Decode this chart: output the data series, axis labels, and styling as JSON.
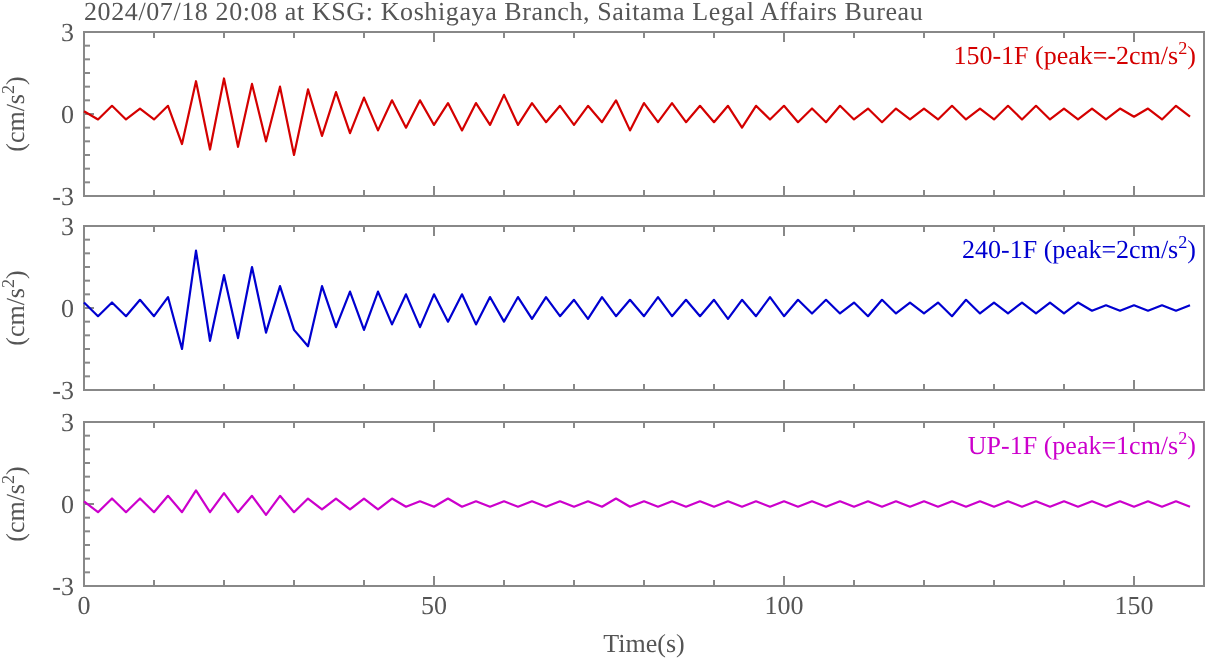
{
  "chart_data": [
    {
      "type": "line",
      "title": "2024/07/18 20:08 at KSG: Koshigaya Branch, Saitama Legal Affairs Bureau",
      "ylabel": "(cm/s$^{2}$)",
      "tick_labels": "y",
      "legend": "top right",
      "xlim": [
        0,
        160
      ],
      "ylim": [
        -3,
        3
      ],
      "xticks": [
        0,
        {
          "value": 10,
          "label": null
        },
        {
          "value": 20,
          "label": null
        },
        {
          "value": 30,
          "label": null
        },
        {
          "value": 40,
          "label": null
        },
        50,
        {
          "value": 60,
          "label": null
        },
        {
          "value": 70,
          "label": null
        },
        {
          "value": 80,
          "label": null
        },
        {
          "value": 90,
          "label": null
        },
        100,
        {
          "value": 110,
          "label": null
        },
        {
          "value": 120,
          "label": null
        },
        {
          "value": 130,
          "label": null
        },
        {
          "value": 140,
          "label": null
        },
        150,
        {
          "value": 160,
          "label": null
        }
      ],
      "yticks": [
        -3,
        {
          "value": -2.5,
          "label": null
        },
        {
          "value": -2,
          "label": null
        },
        {
          "value": -1.5,
          "label": null
        },
        {
          "value": -1,
          "label": null
        },
        {
          "value": -0.5,
          "label": null
        },
        0,
        {
          "value": 0.5,
          "label": null
        },
        {
          "value": 1,
          "label": null
        },
        {
          "value": 1.5,
          "label": null
        },
        {
          "value": 2,
          "label": null
        },
        {
          "value": 2.5,
          "label": null
        },
        3
      ],
      "x": [
        0,
        2,
        4,
        6,
        8,
        10,
        12,
        14,
        16,
        18,
        20,
        22,
        24,
        26,
        28,
        30,
        32,
        34,
        36,
        38,
        40,
        42,
        44,
        46,
        48,
        50,
        52,
        54,
        56,
        58,
        60,
        62,
        64,
        66,
        68,
        70,
        72,
        74,
        76,
        78,
        80,
        82,
        84,
        86,
        88,
        90,
        92,
        94,
        96,
        98,
        100,
        102,
        104,
        106,
        108,
        110,
        112,
        114,
        116,
        118,
        120,
        122,
        124,
        126,
        128,
        130,
        132,
        134,
        136,
        138,
        140,
        142,
        144,
        146,
        148,
        150,
        152,
        154,
        156,
        158
      ],
      "series": [
        {
          "name": "150-1F (peak=-2cm/s$^{2}$)",
          "color": "#d40000",
          "values": [
            0.1,
            -0.2,
            0.3,
            -0.2,
            0.2,
            -0.2,
            0.3,
            -1.1,
            1.2,
            -1.3,
            1.3,
            -1.2,
            1.1,
            -1.0,
            1.0,
            -1.5,
            0.9,
            -0.8,
            0.8,
            -0.7,
            0.6,
            -0.6,
            0.5,
            -0.5,
            0.5,
            -0.4,
            0.4,
            -0.6,
            0.4,
            -0.4,
            0.7,
            -0.4,
            0.4,
            -0.3,
            0.3,
            -0.4,
            0.3,
            -0.3,
            0.5,
            -0.6,
            0.4,
            -0.3,
            0.4,
            -0.3,
            0.3,
            -0.3,
            0.3,
            -0.5,
            0.3,
            -0.2,
            0.3,
            -0.3,
            0.2,
            -0.3,
            0.3,
            -0.2,
            0.2,
            -0.3,
            0.2,
            -0.2,
            0.2,
            -0.2,
            0.3,
            -0.2,
            0.2,
            -0.2,
            0.3,
            -0.2,
            0.3,
            -0.2,
            0.2,
            -0.2,
            0.2,
            -0.2,
            0.2,
            -0.1,
            0.2,
            -0.2,
            0.3,
            -0.1
          ]
        }
      ]
    },
    {
      "type": "line",
      "ylabel": "(cm/s$^{2}$)",
      "tick_labels": "y",
      "legend": "top right",
      "xlim": [
        0,
        160
      ],
      "ylim": [
        -3,
        3
      ],
      "xticks": [
        0,
        {
          "value": 10,
          "label": null
        },
        {
          "value": 20,
          "label": null
        },
        {
          "value": 30,
          "label": null
        },
        {
          "value": 40,
          "label": null
        },
        50,
        {
          "value": 60,
          "label": null
        },
        {
          "value": 70,
          "label": null
        },
        {
          "value": 80,
          "label": null
        },
        {
          "value": 90,
          "label": null
        },
        100,
        {
          "value": 110,
          "label": null
        },
        {
          "value": 120,
          "label": null
        },
        {
          "value": 130,
          "label": null
        },
        {
          "value": 140,
          "label": null
        },
        150,
        {
          "value": 160,
          "label": null
        }
      ],
      "yticks": [
        -3,
        {
          "value": -2.5,
          "label": null
        },
        {
          "value": -2,
          "label": null
        },
        {
          "value": -1.5,
          "label": null
        },
        {
          "value": -1,
          "label": null
        },
        {
          "value": -0.5,
          "label": null
        },
        0,
        {
          "value": 0.5,
          "label": null
        },
        {
          "value": 1,
          "label": null
        },
        {
          "value": 1.5,
          "label": null
        },
        {
          "value": 2,
          "label": null
        },
        {
          "value": 2.5,
          "label": null
        },
        3
      ],
      "x": [
        0,
        2,
        4,
        6,
        8,
        10,
        12,
        14,
        16,
        18,
        20,
        22,
        24,
        26,
        28,
        30,
        32,
        34,
        36,
        38,
        40,
        42,
        44,
        46,
        48,
        50,
        52,
        54,
        56,
        58,
        60,
        62,
        64,
        66,
        68,
        70,
        72,
        74,
        76,
        78,
        80,
        82,
        84,
        86,
        88,
        90,
        92,
        94,
        96,
        98,
        100,
        102,
        104,
        106,
        108,
        110,
        112,
        114,
        116,
        118,
        120,
        122,
        124,
        126,
        128,
        130,
        132,
        134,
        136,
        138,
        140,
        142,
        144,
        146,
        148,
        150,
        152,
        154,
        156,
        158
      ],
      "series": [
        {
          "name": "240-1F (peak=2cm/s$^{2}$)",
          "color": "#0000d0",
          "values": [
            0.2,
            -0.3,
            0.2,
            -0.3,
            0.3,
            -0.3,
            0.4,
            -1.5,
            2.1,
            -1.2,
            1.2,
            -1.1,
            1.5,
            -0.9,
            0.8,
            -0.8,
            -1.4,
            0.8,
            -0.7,
            0.6,
            -0.8,
            0.6,
            -0.6,
            0.5,
            -0.7,
            0.5,
            -0.5,
            0.5,
            -0.6,
            0.4,
            -0.5,
            0.4,
            -0.4,
            0.4,
            -0.3,
            0.3,
            -0.4,
            0.4,
            -0.3,
            0.3,
            -0.3,
            0.4,
            -0.3,
            0.3,
            -0.3,
            0.3,
            -0.4,
            0.3,
            -0.3,
            0.4,
            -0.3,
            0.3,
            -0.2,
            0.3,
            -0.2,
            0.2,
            -0.3,
            0.3,
            -0.2,
            0.2,
            -0.2,
            0.2,
            -0.3,
            0.3,
            -0.2,
            0.2,
            -0.2,
            0.2,
            -0.2,
            0.2,
            -0.2,
            0.2,
            -0.1,
            0.1,
            -0.1,
            0.1,
            -0.1,
            0.1,
            -0.1,
            0.1
          ]
        }
      ]
    },
    {
      "type": "line",
      "xlabel": "Time(s)",
      "ylabel": "(cm/s$^{2}$)",
      "legend": "top right",
      "xlim": [
        0,
        160
      ],
      "ylim": [
        -3,
        3
      ],
      "xticks": [
        0,
        {
          "value": 10,
          "label": null
        },
        {
          "value": 20,
          "label": null
        },
        {
          "value": 30,
          "label": null
        },
        {
          "value": 40,
          "label": null
        },
        50,
        {
          "value": 60,
          "label": null
        },
        {
          "value": 70,
          "label": null
        },
        {
          "value": 80,
          "label": null
        },
        {
          "value": 90,
          "label": null
        },
        100,
        {
          "value": 110,
          "label": null
        },
        {
          "value": 120,
          "label": null
        },
        {
          "value": 130,
          "label": null
        },
        {
          "value": 140,
          "label": null
        },
        150,
        {
          "value": 160,
          "label": null
        }
      ],
      "yticks": [
        -3,
        {
          "value": -2.5,
          "label": null
        },
        {
          "value": -2,
          "label": null
        },
        {
          "value": -1.5,
          "label": null
        },
        {
          "value": -1,
          "label": null
        },
        {
          "value": -0.5,
          "label": null
        },
        0,
        {
          "value": 0.5,
          "label": null
        },
        {
          "value": 1,
          "label": null
        },
        {
          "value": 1.5,
          "label": null
        },
        {
          "value": 2,
          "label": null
        },
        {
          "value": 2.5,
          "label": null
        },
        3
      ],
      "x": [
        0,
        2,
        4,
        6,
        8,
        10,
        12,
        14,
        16,
        18,
        20,
        22,
        24,
        26,
        28,
        30,
        32,
        34,
        36,
        38,
        40,
        42,
        44,
        46,
        48,
        50,
        52,
        54,
        56,
        58,
        60,
        62,
        64,
        66,
        68,
        70,
        72,
        74,
        76,
        78,
        80,
        82,
        84,
        86,
        88,
        90,
        92,
        94,
        96,
        98,
        100,
        102,
        104,
        106,
        108,
        110,
        112,
        114,
        116,
        118,
        120,
        122,
        124,
        126,
        128,
        130,
        132,
        134,
        136,
        138,
        140,
        142,
        144,
        146,
        148,
        150,
        152,
        154,
        156,
        158
      ],
      "series": [
        {
          "name": "UP-1F (peak=1cm/s$^{2}$)",
          "color": "#cc00cc",
          "values": [
            0.1,
            -0.3,
            0.2,
            -0.3,
            0.2,
            -0.3,
            0.3,
            -0.3,
            0.5,
            -0.3,
            0.4,
            -0.3,
            0.3,
            -0.4,
            0.3,
            -0.3,
            0.2,
            -0.2,
            0.2,
            -0.2,
            0.2,
            -0.2,
            0.2,
            -0.1,
            0.1,
            -0.1,
            0.2,
            -0.1,
            0.1,
            -0.1,
            0.1,
            -0.1,
            0.1,
            -0.1,
            0.1,
            -0.1,
            0.1,
            -0.1,
            0.2,
            -0.1,
            0.1,
            -0.1,
            0.1,
            -0.1,
            0.1,
            -0.1,
            0.1,
            -0.1,
            0.1,
            -0.1,
            0.1,
            -0.1,
            0.1,
            -0.1,
            0.1,
            -0.1,
            0.1,
            -0.1,
            0.1,
            -0.1,
            0.1,
            -0.1,
            0.1,
            -0.1,
            0.1,
            -0.1,
            0.1,
            -0.1,
            0.1,
            -0.1,
            0.1,
            -0.1,
            0.1,
            -0.1,
            0.1,
            -0.1,
            0.1,
            -0.1,
            0.1,
            -0.1
          ]
        }
      ]
    }
  ]
}
